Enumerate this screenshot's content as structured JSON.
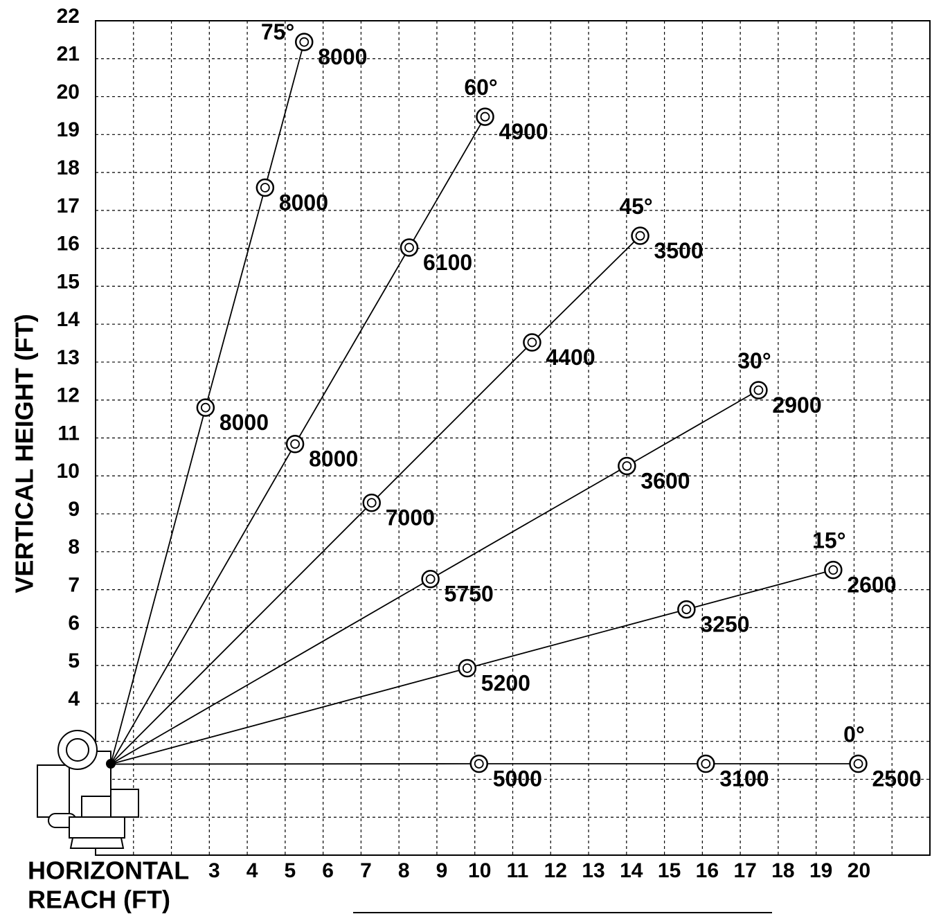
{
  "chart_data": {
    "type": "boom-chart",
    "y_label": "VERTICAL HEIGHT (FT)",
    "x_label_lines": [
      "HORIZONTAL",
      "REACH (FT)"
    ],
    "xlim": [
      0,
      22
    ],
    "ylim": [
      0,
      22
    ],
    "xticks": [
      3,
      4,
      5,
      6,
      7,
      8,
      9,
      10,
      11,
      12,
      13,
      14,
      15,
      16,
      17,
      18,
      19,
      20
    ],
    "yticks": [
      4,
      5,
      6,
      7,
      8,
      9,
      10,
      11,
      12,
      13,
      14,
      15,
      16,
      17,
      18,
      19,
      20,
      21,
      22
    ],
    "grid": true,
    "origin": [
      0.4,
      2.4
    ],
    "color": "#000000",
    "series": [
      {
        "name": "75°",
        "x": [
          2.9,
          4.47,
          5.5
        ],
        "values": [
          11.8,
          17.6,
          21.44
        ],
        "loads": [
          8000,
          8000,
          8000
        ]
      },
      {
        "name": "60°",
        "x": [
          5.26,
          8.27,
          10.27
        ],
        "values": [
          10.84,
          16.02,
          19.47
        ],
        "loads": [
          8000,
          6100,
          4900
        ]
      },
      {
        "name": "45°",
        "x": [
          7.28,
          11.51,
          14.36
        ],
        "values": [
          9.29,
          13.52,
          16.33
        ],
        "loads": [
          7000,
          4400,
          3500
        ]
      },
      {
        "name": "30°",
        "x": [
          8.83,
          14.01,
          17.48
        ],
        "values": [
          7.28,
          10.26,
          12.26
        ],
        "loads": [
          5750,
          3600,
          2900
        ]
      },
      {
        "name": "15°",
        "x": [
          9.8,
          15.58,
          19.45
        ],
        "values": [
          4.93,
          6.48,
          7.52
        ],
        "loads": [
          5200,
          3250,
          2600
        ]
      },
      {
        "name": "0°",
        "x": [
          10.11,
          16.09,
          20.11
        ],
        "values": [
          2.41,
          2.41,
          2.41
        ],
        "loads": [
          5000,
          3100,
          2500
        ]
      }
    ]
  }
}
